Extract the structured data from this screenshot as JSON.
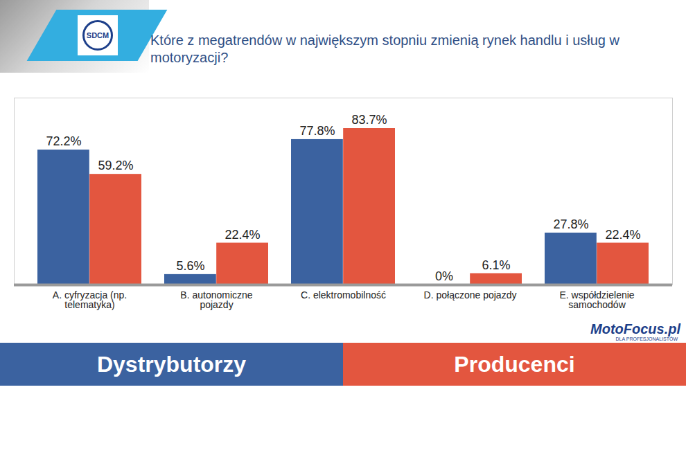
{
  "chart_data": {
    "type": "bar",
    "title": "Które z megatrendów w największym stopniu zmienią rynek handlu i usług w motoryzacji?",
    "categories": [
      "A. cyfryzacja (np. telematyka)",
      "B. autonomiczne pojazdy",
      "C. elektromobilność",
      "D. połączone pojazdy",
      "E. współdzielenie samochodów"
    ],
    "series": [
      {
        "name": "Dystrybutorzy",
        "color": "#3b62a0",
        "values": [
          72.2,
          5.6,
          77.8,
          0,
          27.8
        ],
        "value_labels": [
          "72.2%",
          "5.6%",
          "77.8%",
          "0%",
          "27.8%"
        ]
      },
      {
        "name": "Producenci",
        "color": "#e3563f",
        "values": [
          59.2,
          22.4,
          83.7,
          6.1,
          22.4
        ],
        "value_labels": [
          "59.2%",
          "22.4%",
          "83.7%",
          "6.1%",
          "22.4%"
        ]
      }
    ],
    "ylim": [
      0,
      100
    ],
    "grid": false,
    "tick_labels": "x",
    "data_labels": true,
    "legend": "bottom",
    "annotations": [
      "SDCM",
      "MotoFocus.pl",
      "DLA PROFESJONALISTÓW"
    ]
  }
}
